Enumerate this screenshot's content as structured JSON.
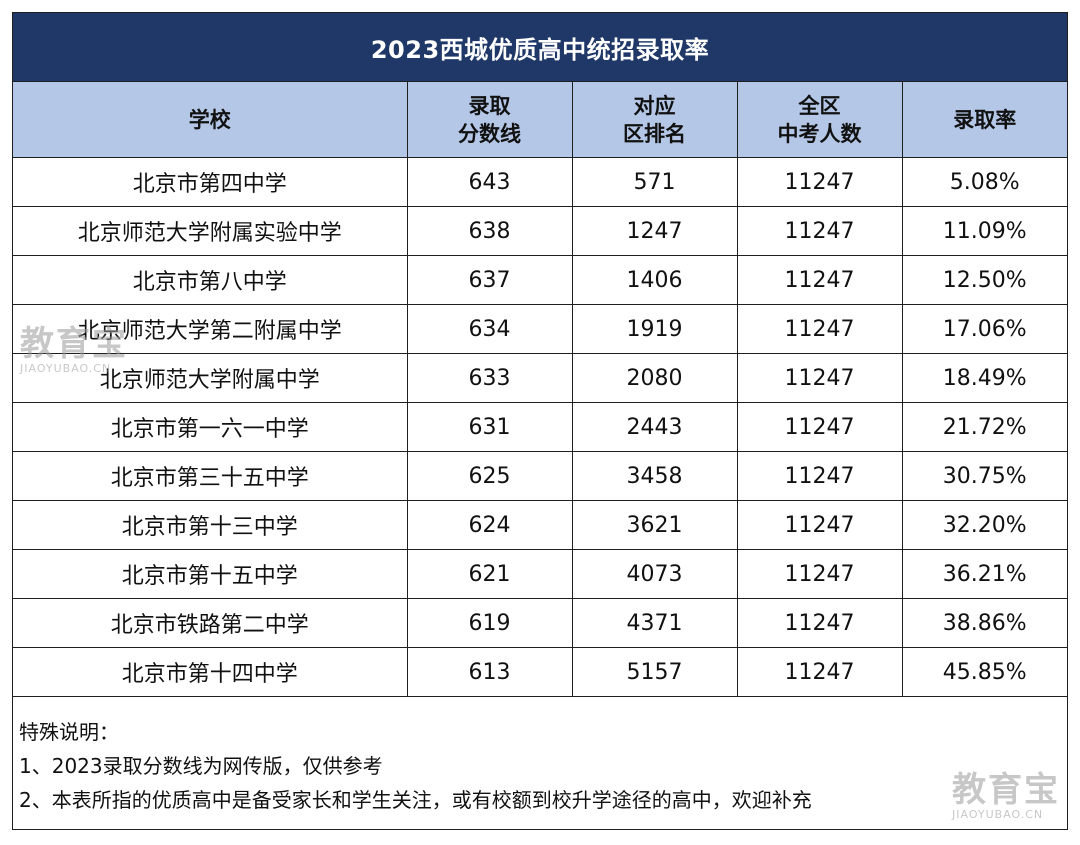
{
  "title": "2023西城优质高中统招录取率",
  "headers": {
    "school": "学校",
    "score": [
      "录取",
      "分数线"
    ],
    "rank": [
      "对应",
      "区排名"
    ],
    "total": [
      "全区",
      "中考人数"
    ],
    "rate": "录取率"
  },
  "rows": [
    {
      "school": "北京市第四中学",
      "score": "643",
      "rank": "571",
      "total": "11247",
      "rate": "5.08%",
      "rate_color": "red",
      "total_color": ""
    },
    {
      "school": "北京师范大学附属实验中学",
      "score": "638",
      "rank": "1247",
      "total": "11247",
      "rate": "11.09%",
      "rate_color": "red",
      "total_color": "green"
    },
    {
      "school": "北京市第八中学",
      "score": "637",
      "rank": "1406",
      "total": "11247",
      "rate": "12.50%",
      "rate_color": "",
      "total_color": ""
    },
    {
      "school": "北京师范大学第二附属中学",
      "score": "634",
      "rank": "1919",
      "total": "11247",
      "rate": "17.06%",
      "rate_color": "",
      "total_color": ""
    },
    {
      "school": "北京师范大学附属中学",
      "score": "633",
      "rank": "2080",
      "total": "11247",
      "rate": "18.49%",
      "rate_color": "",
      "total_color": ""
    },
    {
      "school": "北京市第一六一中学",
      "score": "631",
      "rank": "2443",
      "total": "11247",
      "rate": "21.72%",
      "rate_color": "red",
      "total_color": ""
    },
    {
      "school": "北京市第三十五中学",
      "score": "625",
      "rank": "3458",
      "total": "11247",
      "rate": "30.75%",
      "rate_color": "red",
      "total_color": ""
    },
    {
      "school": "北京市第十三中学",
      "score": "624",
      "rank": "3621",
      "total": "11247",
      "rate": "32.20%",
      "rate_color": "red",
      "total_color": ""
    },
    {
      "school": "北京市第十五中学",
      "score": "621",
      "rank": "4073",
      "total": "11247",
      "rate": "36.21%",
      "rate_color": "",
      "total_color": ""
    },
    {
      "school": "北京市铁路第二中学",
      "score": "619",
      "rank": "4371",
      "total": "11247",
      "rate": "38.86%",
      "rate_color": "",
      "total_color": ""
    },
    {
      "school": "北京市第十四中学",
      "score": "613",
      "rank": "5157",
      "total": "11247",
      "rate": "45.85%",
      "rate_color": "",
      "total_color": ""
    }
  ],
  "notes": {
    "heading": "特殊说明：",
    "items": [
      "1、2023录取分数线为网传版，仅供参考",
      "2、本表所指的优质高中是备受家长和学生关注，或有校额到校升学途径的高中，欢迎补充"
    ]
  },
  "watermark": {
    "text": "教育宝",
    "domain": "JIAOYUBAO.CN"
  },
  "colors": {
    "title_bg": "#1f3868",
    "header_bg": "#b4c7e7",
    "highlight_red": "#e02020",
    "highlight_green": "#2e6b2e"
  }
}
